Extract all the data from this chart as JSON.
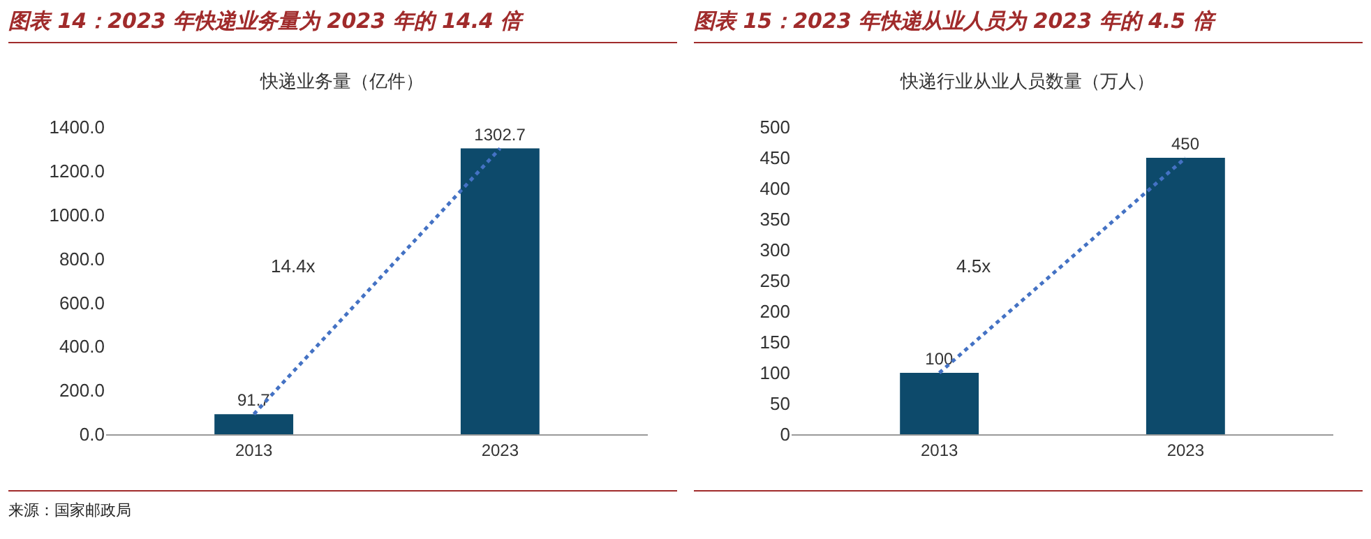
{
  "chart_data": [
    {
      "type": "bar",
      "title": "图表 14：2023 年快递业务量为 2023 年的 14.4 倍",
      "subtitle": "快递业务量（亿件）",
      "categories": [
        "2013",
        "2023"
      ],
      "series": [
        {
          "color": "#0d4a6b",
          "values": [
            91.7,
            1302.7
          ],
          "value_labels": [
            "91.7",
            "1302.7"
          ]
        },
        {
          "type": "line",
          "color": "#4472c4",
          "line_style": "dotted",
          "marker": "none",
          "values": [
            91.7,
            1302.7
          ]
        }
      ],
      "ylim": [
        0,
        1400
      ],
      "yticks": [
        {
          "value": 0,
          "label": "0.0"
        },
        {
          "value": 200,
          "label": "200.0"
        },
        {
          "value": 400,
          "label": "400.0"
        },
        {
          "value": 600,
          "label": "600.0"
        },
        {
          "value": 800,
          "label": "800.0"
        },
        {
          "value": 1000,
          "label": "1000.0"
        },
        {
          "value": 1200,
          "label": "1200.0"
        },
        {
          "value": 1400,
          "label": "1400.0"
        }
      ],
      "annotations": [
        "14.4x",
        "来源：国家邮政局"
      ]
    },
    {
      "type": "bar",
      "title": "图表 15：2023 年快递从业人员为 2023 年的 4.5 倍",
      "subtitle": "快递行业从业人员数量（万人）",
      "categories": [
        "2013",
        "2023"
      ],
      "series": [
        {
          "color": "#0d4a6b",
          "values": [
            100,
            450
          ],
          "value_labels": [
            "100",
            "450"
          ]
        },
        {
          "type": "line",
          "color": "#4472c4",
          "line_style": "dotted",
          "marker": "none",
          "values": [
            100,
            450
          ]
        }
      ],
      "ylim": [
        0,
        500
      ],
      "yticks": [
        0,
        50,
        100,
        150,
        200,
        250,
        300,
        350,
        400,
        450,
        500
      ],
      "annotations": [
        "4.5x"
      ]
    }
  ]
}
